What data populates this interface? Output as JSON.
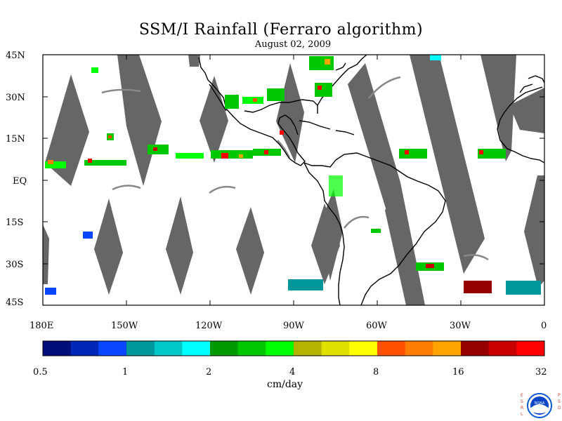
{
  "title": "SSM/I Rainfall (Ferraro algorithm)",
  "subtitle": "August 02, 2009",
  "lat_labels": [
    "45N",
    "30N",
    "15N",
    "EQ",
    "15S",
    "30S",
    "45S"
  ],
  "lon_labels": [
    "180E",
    "150W",
    "120W",
    "90W",
    "60W",
    "30W",
    "0"
  ],
  "colorbar": {
    "colors": [
      "#000e7a",
      "#0028b8",
      "#0a46ff",
      "#00979a",
      "#00c8c8",
      "#00ffff",
      "#009a00",
      "#00c800",
      "#00ff00",
      "#b4b400",
      "#e1e100",
      "#ffff00",
      "#ff5000",
      "#ff7d00",
      "#ffa500",
      "#960000",
      "#c80000",
      "#ff0000"
    ],
    "tick_labels": [
      "0.5",
      "1",
      "2",
      "4",
      "8",
      "16",
      "32"
    ],
    "units": "cm/day"
  },
  "logo": {
    "name": "NOAA",
    "left_text": "ESRL",
    "right_text": "PSD"
  }
}
